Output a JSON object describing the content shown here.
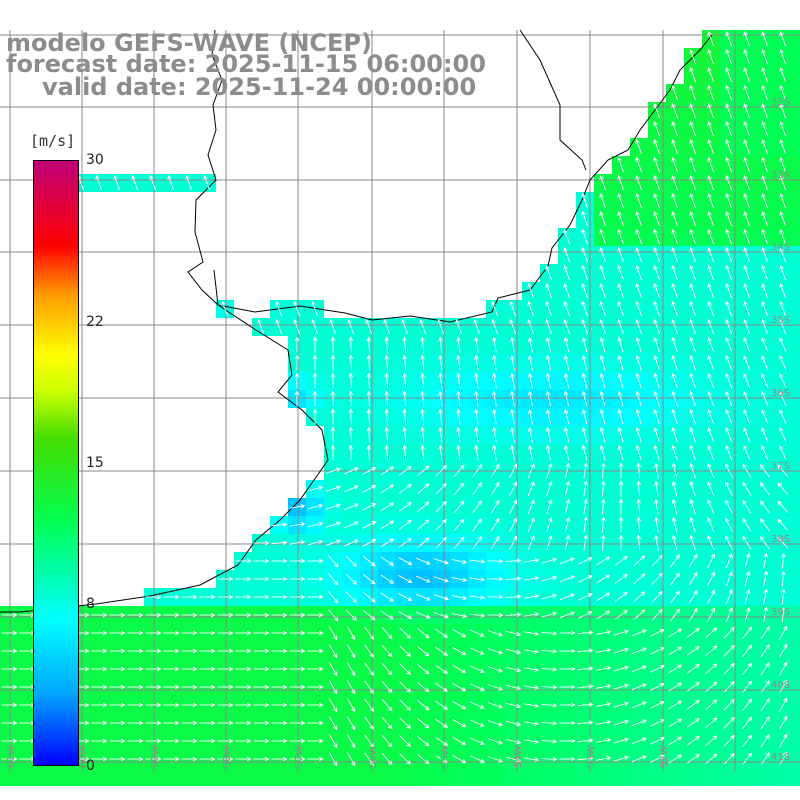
{
  "header": {
    "model": "modelo GEFS-WAVE (NCEP)",
    "forecast": "forecast date: 2025-11-15 06:00:00",
    "valid": "valid date: 2025-11-24 00:00:00"
  },
  "legend": {
    "unit": "[m/s]",
    "ticks": [
      {
        "label": "30",
        "value": 30
      },
      {
        "label": "22",
        "value": 22
      },
      {
        "label": "15",
        "value": 15
      },
      {
        "label": "8",
        "value": 8
      },
      {
        "label": "0",
        "value": 0
      }
    ],
    "colors": [
      "#0000ff",
      "#00a8ff",
      "#00ffff",
      "#00ff55",
      "#44dd00",
      "#ccff00",
      "#ffff00",
      "#ff9900",
      "#ff0000",
      "#c0007a"
    ]
  },
  "map": {
    "lat_labels": [
      "32S",
      "33S",
      "34S",
      "35S",
      "36S",
      "37S",
      "38S",
      "39S",
      "40S",
      "41S"
    ],
    "lon_labels": [
      "61W",
      "60W",
      "59W",
      "58W",
      "57W",
      "56W",
      "55W",
      "54W",
      "53W",
      "52W"
    ],
    "land_color": "#ffffff",
    "grid_color": "#888888",
    "arrow_color": "#ffffff"
  }
}
